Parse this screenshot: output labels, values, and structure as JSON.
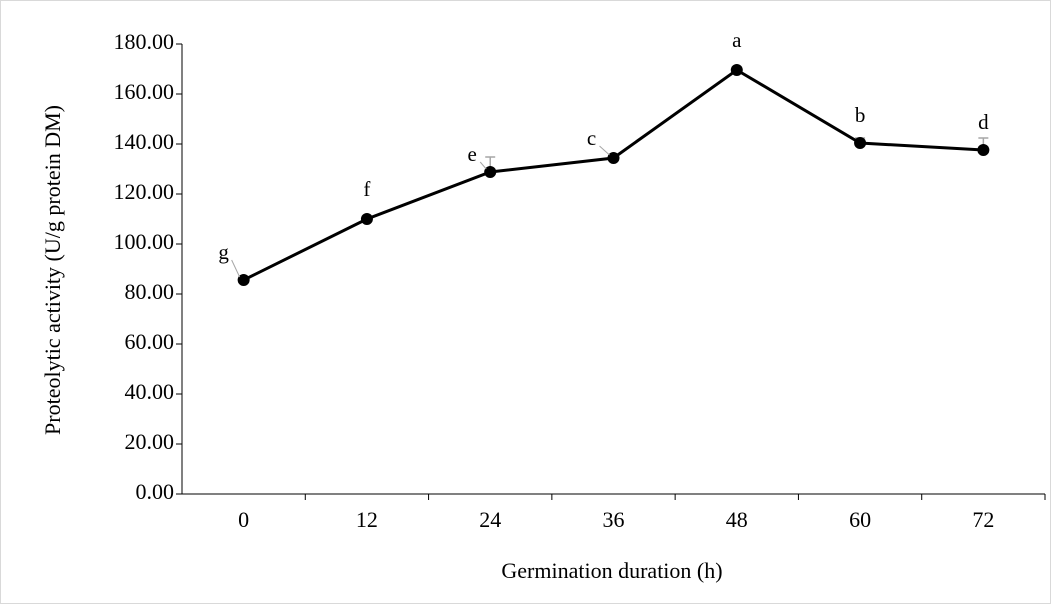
{
  "chart_data": {
    "type": "line",
    "x_label": "Germination duration (h)",
    "y_label": "Proteolytic activity (U/g protein DM)",
    "categories": [
      "0",
      "12",
      "24",
      "36",
      "48",
      "60",
      "72"
    ],
    "series": [
      {
        "color": "#000000",
        "values": [
          85.6,
          110,
          128.8,
          134.4,
          169.6,
          140.4,
          137.6
        ],
        "errors": [
          1,
          1,
          6,
          1,
          1,
          2,
          4.8
        ],
        "annotations": [
          "g",
          "f",
          "e",
          "c",
          "a",
          "b",
          "d"
        ]
      }
    ],
    "error_color": "#a6a6a6",
    "ylim": [
      0,
      180
    ],
    "yticks": [
      {
        "value": 0,
        "label": "0.00"
      },
      {
        "value": 20,
        "label": "20.00"
      },
      {
        "value": 40,
        "label": "40.00"
      },
      {
        "value": 60,
        "label": "60.00"
      },
      {
        "value": 80,
        "label": "80.00"
      },
      {
        "value": 100,
        "label": "100.00"
      },
      {
        "value": 120,
        "label": "120.00"
      },
      {
        "value": 140,
        "label": "140.00"
      },
      {
        "value": 160,
        "label": "160.00"
      },
      {
        "value": 180,
        "label": "180.00"
      }
    ],
    "grid": false
  }
}
